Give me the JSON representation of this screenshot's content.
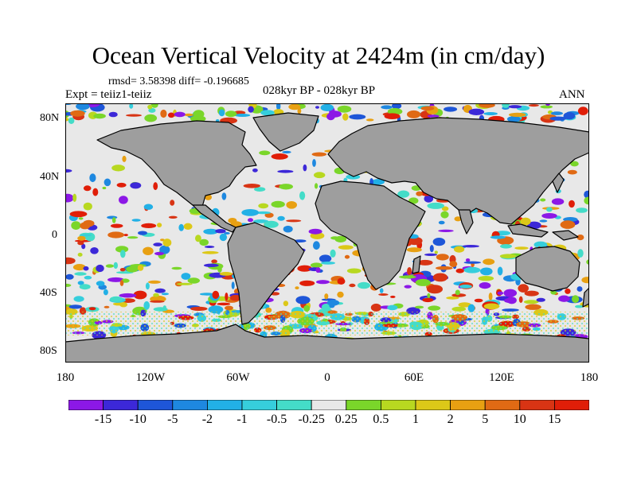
{
  "title": "Ocean Vertical Velocity at 2424m (in cm/day)",
  "stats": "rmsd= 3.58398 diff= -0.196685",
  "experiment": "Expt = teiiz1-teiiz",
  "period": "028kyr BP - 028kyr BP",
  "season": "ANN",
  "lat_labels": [
    "80N",
    "40N",
    "0",
    "40S",
    "80S"
  ],
  "lon_labels": [
    "180",
    "120W",
    "60W",
    "0",
    "60E",
    "120E",
    "180"
  ],
  "colorbar": {
    "labels": [
      "-15",
      "-10",
      "-5",
      "-2",
      "-1",
      "-0.5",
      "-0.25",
      "0.25",
      "0.5",
      "1",
      "2",
      "5",
      "10",
      "15"
    ],
    "colors": [
      "#8c18e6",
      "#3c28d8",
      "#1e56d8",
      "#1e88e0",
      "#22b0e6",
      "#36cedc",
      "#44dcc8",
      "#e8e8e8",
      "#7ad62a",
      "#b8d820",
      "#dcc818",
      "#e8a012",
      "#e06a14",
      "#d83414",
      "#e01e08"
    ]
  },
  "map": {
    "land_color": "#9e9e9e",
    "ocean_neutral_color": "#e8e8e8"
  }
}
